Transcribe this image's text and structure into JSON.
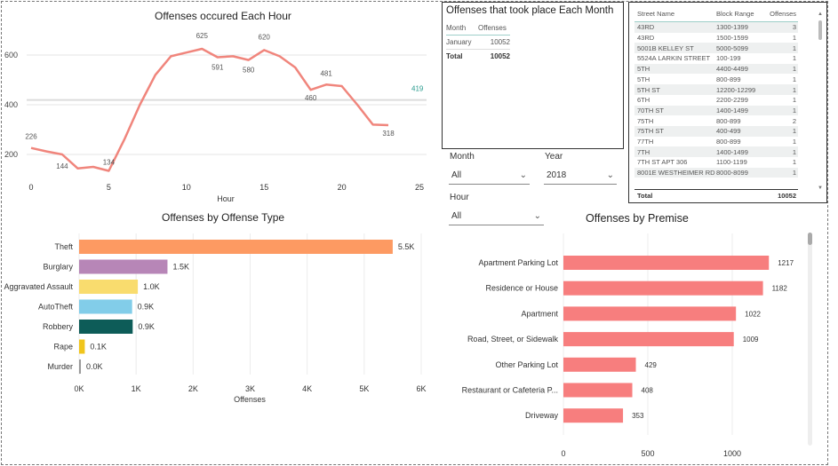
{
  "hourly": {
    "title": "Offenses occured Each Hour",
    "xlabel": "Hour",
    "x_ticks": [
      "0",
      "5",
      "10",
      "15",
      "20",
      "25"
    ],
    "y_ticks": [
      "200",
      "400",
      "600"
    ],
    "data_labels": [
      "226",
      "144",
      "134",
      "625",
      "591",
      "580",
      "620",
      "460",
      "481",
      "318"
    ],
    "ref_value": "419"
  },
  "chart_data": [
    {
      "type": "line",
      "title": "Offenses occured Each Hour",
      "xlabel": "Hour",
      "ylabel": "",
      "x": [
        0,
        1,
        2,
        3,
        4,
        5,
        6,
        7,
        8,
        9,
        10,
        11,
        12,
        13,
        14,
        15,
        16,
        17,
        18,
        19,
        20,
        21,
        22,
        23
      ],
      "values": [
        226,
        212,
        200,
        144,
        150,
        134,
        260,
        400,
        520,
        595,
        610,
        625,
        591,
        595,
        580,
        620,
        595,
        550,
        460,
        481,
        475,
        400,
        320,
        318
      ],
      "xlim": [
        0,
        25
      ],
      "ylim": [
        100,
        700
      ],
      "reference_line": 419
    },
    {
      "type": "bar",
      "title": "Offenses by Offense Type",
      "categories": [
        "Theft",
        "Burglary",
        "Aggravated Assault",
        "AutoTheft",
        "Robbery",
        "Rape",
        "Murder"
      ],
      "values": [
        5500,
        1550,
        1030,
        930,
        940,
        100,
        20
      ],
      "value_labels": [
        "5.5K",
        "1.5K",
        "1.0K",
        "0.9K",
        "0.9K",
        "0.1K",
        "0.0K"
      ],
      "colors": [
        "#fd9a62",
        "#b786b7",
        "#f9dc6e",
        "#82cde9",
        "#0d5c58",
        "#f0c51c",
        "#9a9a9a"
      ],
      "xlabel": "Offenses",
      "x_ticks": [
        "0K",
        "1K",
        "2K",
        "3K",
        "4K",
        "5K",
        "6K"
      ],
      "xlim": [
        0,
        6000
      ]
    },
    {
      "type": "bar",
      "title": "Offenses by Premise",
      "categories": [
        "Apartment Parking Lot",
        "Residence or House",
        "Apartment",
        "Road, Street, or Sidewalk",
        "Other Parking Lot",
        "Restaurant or Cafeteria P...",
        "Driveway"
      ],
      "values": [
        1217,
        1182,
        1022,
        1009,
        429,
        408,
        353
      ],
      "value_labels": [
        "1217",
        "1182",
        "1022",
        "1009",
        "429",
        "408",
        "353"
      ],
      "x_ticks": [
        "0",
        "500",
        "1000"
      ],
      "xlim": [
        0,
        1300
      ],
      "color": "#f77e7e"
    }
  ],
  "offense_type": {
    "title": "Offenses by Offense Type",
    "xlabel": "Offenses",
    "x_ticks": [
      "0K",
      "1K",
      "2K",
      "3K",
      "4K",
      "5K",
      "6K"
    ]
  },
  "premise": {
    "title": "Offenses by Premise",
    "x_ticks": [
      "0",
      "500",
      "1000"
    ]
  },
  "month_table": {
    "title": "Offenses that took place Each Month",
    "headers": [
      "Month",
      "Offenses"
    ],
    "rows": [
      [
        "January",
        "10052"
      ]
    ],
    "total": [
      "Total",
      "10052"
    ]
  },
  "street_table": {
    "headers": [
      "Street Name",
      "Block Range",
      "Offenses"
    ],
    "rows": [
      [
        "43RD",
        "1300-1399",
        "3"
      ],
      [
        "43RD",
        "1500-1599",
        "1"
      ],
      [
        "5001B KELLEY ST",
        "5000-5099",
        "1"
      ],
      [
        "5524A LARKIN STREET",
        "100-199",
        "1"
      ],
      [
        "5TH",
        "4400-4499",
        "1"
      ],
      [
        "5TH",
        "800-899",
        "1"
      ],
      [
        "5TH ST",
        "12200-12299",
        "1"
      ],
      [
        "6TH",
        "2200-2299",
        "1"
      ],
      [
        "70TH ST",
        "1400-1499",
        "1"
      ],
      [
        "75TH",
        "800-899",
        "2"
      ],
      [
        "75TH ST",
        "400-499",
        "1"
      ],
      [
        "77TH",
        "800-899",
        "1"
      ],
      [
        "7TH",
        "1400-1499",
        "1"
      ],
      [
        "7TH ST APT 306",
        "1100-1199",
        "1"
      ],
      [
        "8001E WESTHEIMER RD",
        "8000-8099",
        "1"
      ]
    ],
    "total": [
      "Total",
      "",
      "10052"
    ]
  },
  "filters": {
    "month": {
      "label": "Month",
      "value": "All"
    },
    "year": {
      "label": "Year",
      "value": "2018"
    },
    "hour": {
      "label": "Hour",
      "value": "All"
    }
  }
}
